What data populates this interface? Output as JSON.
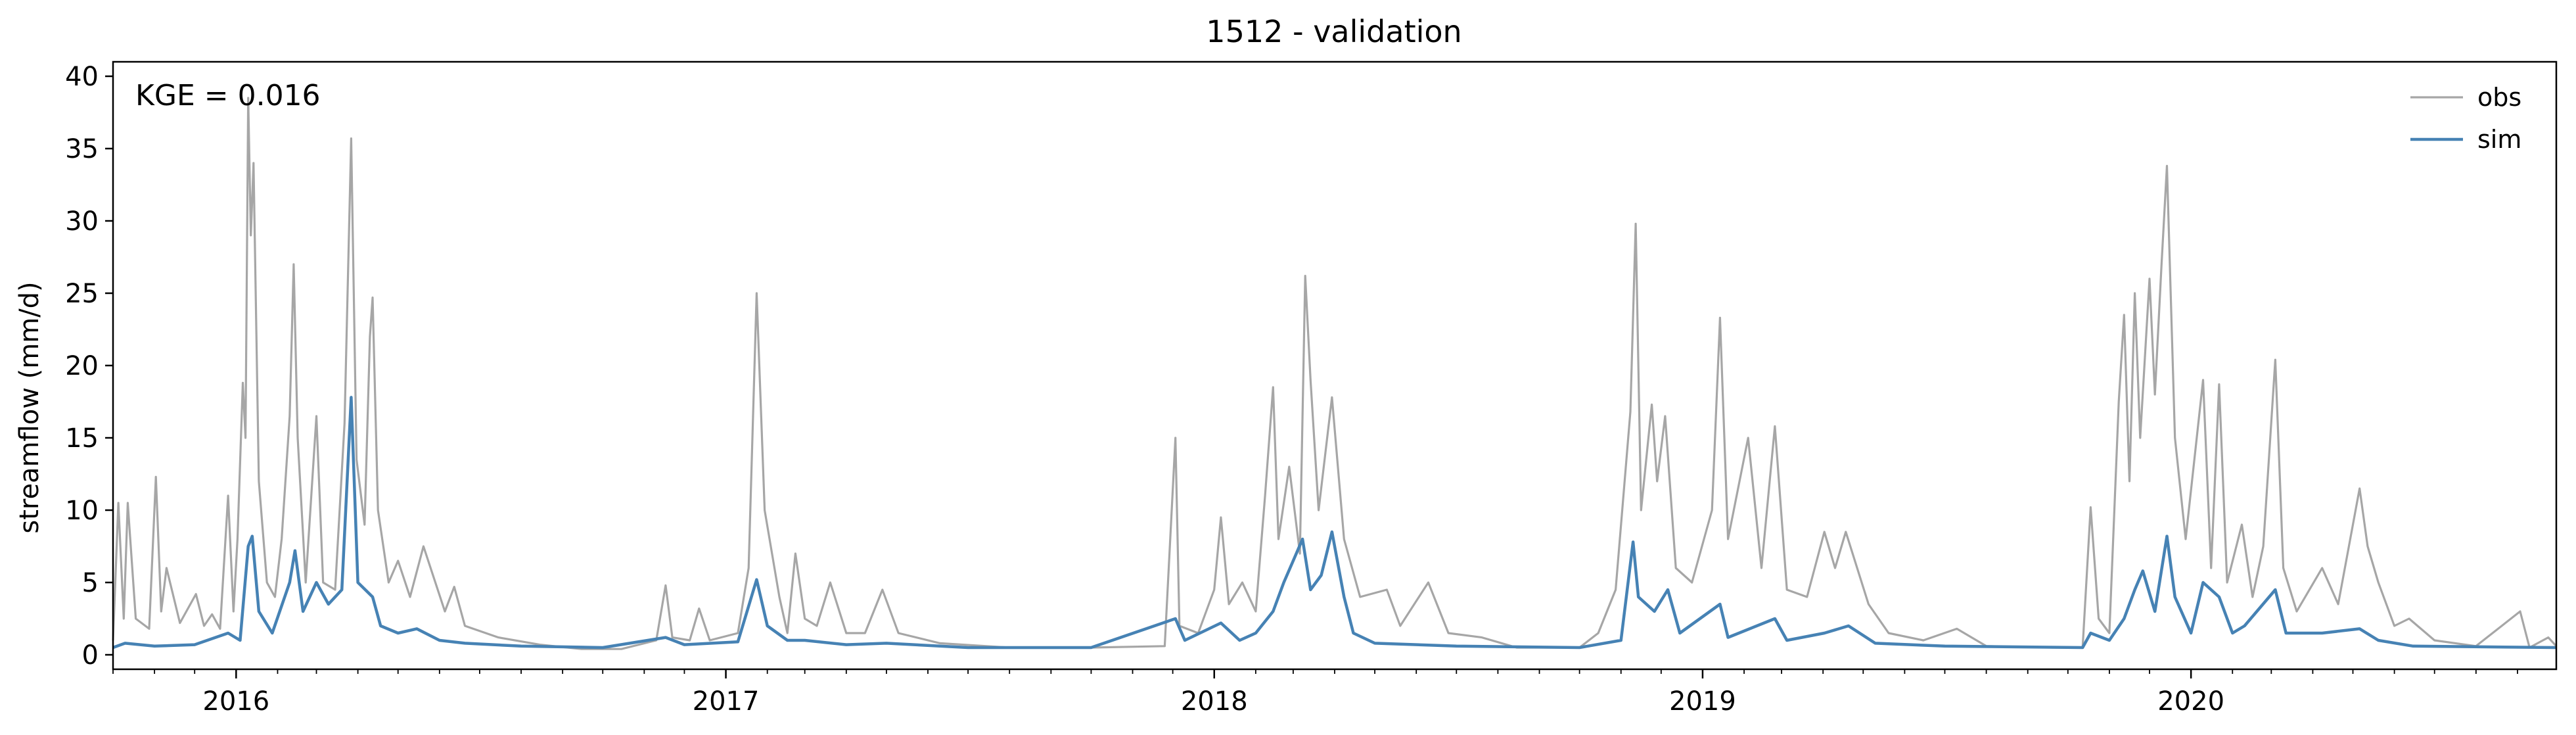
{
  "chart_data": {
    "type": "line",
    "title": "1512 - validation",
    "ylabel": "streamflow (mm/d)",
    "xlabel": "",
    "xlim": [
      "2015-10-01",
      "2020-09-30"
    ],
    "ylim": [
      -1,
      41
    ],
    "yticks": [
      0,
      5,
      10,
      15,
      20,
      25,
      30,
      35,
      40
    ],
    "xticks": [
      "2016",
      "2017",
      "2018",
      "2019",
      "2020"
    ],
    "grid": false,
    "legend": "top-right",
    "annotation": "KGE = 0.016",
    "series": [
      {
        "name": "obs",
        "color": "#a6a6a6",
        "points": [
          [
            "2015-10-01",
            1.0
          ],
          [
            "2015-10-05",
            10.5
          ],
          [
            "2015-10-09",
            2.5
          ],
          [
            "2015-10-12",
            10.5
          ],
          [
            "2015-10-18",
            2.5
          ],
          [
            "2015-10-28",
            1.8
          ],
          [
            "2015-11-02",
            12.3
          ],
          [
            "2015-11-06",
            3.0
          ],
          [
            "2015-11-10",
            6.0
          ],
          [
            "2015-11-20",
            2.2
          ],
          [
            "2015-12-02",
            4.2
          ],
          [
            "2015-12-08",
            2.0
          ],
          [
            "2015-12-14",
            2.8
          ],
          [
            "2015-12-20",
            1.8
          ],
          [
            "2015-12-26",
            11.0
          ],
          [
            "2015-12-30",
            3.0
          ],
          [
            "2016-01-02",
            8.0
          ],
          [
            "2016-01-06",
            18.8
          ],
          [
            "2016-01-08",
            15.0
          ],
          [
            "2016-01-10",
            38.5
          ],
          [
            "2016-01-12",
            29.0
          ],
          [
            "2016-01-14",
            34.0
          ],
          [
            "2016-01-18",
            12.0
          ],
          [
            "2016-01-24",
            5.0
          ],
          [
            "2016-01-30",
            4.0
          ],
          [
            "2016-02-04",
            8.0
          ],
          [
            "2016-02-10",
            16.5
          ],
          [
            "2016-02-13",
            27.0
          ],
          [
            "2016-02-16",
            15.0
          ],
          [
            "2016-02-22",
            5.0
          ],
          [
            "2016-03-01",
            16.5
          ],
          [
            "2016-03-06",
            5.0
          ],
          [
            "2016-03-15",
            4.5
          ],
          [
            "2016-03-22",
            16.0
          ],
          [
            "2016-03-27",
            35.7
          ],
          [
            "2016-03-31",
            13.5
          ],
          [
            "2016-04-06",
            9.0
          ],
          [
            "2016-04-10",
            22.0
          ],
          [
            "2016-04-12",
            24.7
          ],
          [
            "2016-04-16",
            10.0
          ],
          [
            "2016-04-24",
            5.0
          ],
          [
            "2016-05-01",
            6.5
          ],
          [
            "2016-05-10",
            4.0
          ],
          [
            "2016-05-20",
            7.5
          ],
          [
            "2016-06-05",
            3.0
          ],
          [
            "2016-06-12",
            4.7
          ],
          [
            "2016-06-20",
            2.0
          ],
          [
            "2016-07-15",
            1.2
          ],
          [
            "2016-08-15",
            0.7
          ],
          [
            "2016-09-15",
            0.4
          ],
          [
            "2016-10-15",
            0.4
          ],
          [
            "2016-11-10",
            1.0
          ],
          [
            "2016-11-17",
            4.8
          ],
          [
            "2016-11-22",
            1.2
          ],
          [
            "2016-12-05",
            1.0
          ],
          [
            "2016-12-12",
            3.2
          ],
          [
            "2016-12-20",
            1.0
          ],
          [
            "2017-01-10",
            1.5
          ],
          [
            "2017-01-18",
            6.0
          ],
          [
            "2017-01-24",
            25.0
          ],
          [
            "2017-01-30",
            10.0
          ],
          [
            "2017-02-10",
            4.0
          ],
          [
            "2017-02-16",
            1.5
          ],
          [
            "2017-02-22",
            7.0
          ],
          [
            "2017-03-01",
            2.5
          ],
          [
            "2017-03-10",
            2.0
          ],
          [
            "2017-03-20",
            5.0
          ],
          [
            "2017-04-01",
            1.5
          ],
          [
            "2017-04-15",
            1.5
          ],
          [
            "2017-04-28",
            4.5
          ],
          [
            "2017-05-10",
            1.5
          ],
          [
            "2017-06-10",
            0.8
          ],
          [
            "2017-08-01",
            0.5
          ],
          [
            "2017-10-01",
            0.5
          ],
          [
            "2017-11-25",
            0.6
          ],
          [
            "2017-12-03",
            15.0
          ],
          [
            "2017-12-06",
            2.0
          ],
          [
            "2017-12-20",
            1.5
          ],
          [
            "2018-01-01",
            4.5
          ],
          [
            "2018-01-06",
            9.5
          ],
          [
            "2018-01-12",
            3.5
          ],
          [
            "2018-01-22",
            5.0
          ],
          [
            "2018-02-01",
            3.0
          ],
          [
            "2018-02-08",
            11.0
          ],
          [
            "2018-02-14",
            18.5
          ],
          [
            "2018-02-18",
            8.0
          ],
          [
            "2018-02-26",
            13.0
          ],
          [
            "2018-03-06",
            7.0
          ],
          [
            "2018-03-10",
            26.2
          ],
          [
            "2018-03-14",
            19.0
          ],
          [
            "2018-03-20",
            10.0
          ],
          [
            "2018-03-30",
            17.8
          ],
          [
            "2018-04-08",
            8.0
          ],
          [
            "2018-04-20",
            4.0
          ],
          [
            "2018-05-10",
            4.5
          ],
          [
            "2018-05-20",
            2.0
          ],
          [
            "2018-06-10",
            5.0
          ],
          [
            "2018-06-25",
            1.5
          ],
          [
            "2018-07-20",
            1.2
          ],
          [
            "2018-08-15",
            0.5
          ],
          [
            "2018-10-01",
            0.5
          ],
          [
            "2018-10-15",
            1.5
          ],
          [
            "2018-10-28",
            4.5
          ],
          [
            "2018-11-08",
            16.8
          ],
          [
            "2018-11-12",
            29.8
          ],
          [
            "2018-11-16",
            10.0
          ],
          [
            "2018-11-24",
            17.3
          ],
          [
            "2018-11-28",
            12.0
          ],
          [
            "2018-12-04",
            16.5
          ],
          [
            "2018-12-12",
            6.0
          ],
          [
            "2018-12-24",
            5.0
          ],
          [
            "2019-01-08",
            10.0
          ],
          [
            "2019-01-14",
            23.3
          ],
          [
            "2019-01-20",
            8.0
          ],
          [
            "2019-02-04",
            15.0
          ],
          [
            "2019-02-14",
            6.0
          ],
          [
            "2019-02-24",
            15.8
          ],
          [
            "2019-03-05",
            4.5
          ],
          [
            "2019-03-20",
            4.0
          ],
          [
            "2019-04-02",
            8.5
          ],
          [
            "2019-04-10",
            6.0
          ],
          [
            "2019-04-18",
            8.5
          ],
          [
            "2019-05-05",
            3.5
          ],
          [
            "2019-05-20",
            1.5
          ],
          [
            "2019-06-15",
            1.0
          ],
          [
            "2019-07-10",
            1.8
          ],
          [
            "2019-08-01",
            0.6
          ],
          [
            "2019-09-20",
            0.5
          ],
          [
            "2019-10-12",
            0.5
          ],
          [
            "2019-10-18",
            10.2
          ],
          [
            "2019-10-24",
            2.5
          ],
          [
            "2019-11-01",
            1.5
          ],
          [
            "2019-11-08",
            17.5
          ],
          [
            "2019-11-12",
            23.5
          ],
          [
            "2019-11-16",
            12.0
          ],
          [
            "2019-11-20",
            25.0
          ],
          [
            "2019-11-24",
            15.0
          ],
          [
            "2019-12-01",
            26.0
          ],
          [
            "2019-12-05",
            18.0
          ],
          [
            "2019-12-10",
            27.0
          ],
          [
            "2019-12-14",
            33.8
          ],
          [
            "2019-12-20",
            15.0
          ],
          [
            "2019-12-28",
            8.0
          ],
          [
            "2020-01-10",
            19.0
          ],
          [
            "2020-01-16",
            6.0
          ],
          [
            "2020-01-22",
            18.7
          ],
          [
            "2020-01-28",
            5.0
          ],
          [
            "2020-02-08",
            9.0
          ],
          [
            "2020-02-16",
            4.0
          ],
          [
            "2020-02-24",
            7.5
          ],
          [
            "2020-03-04",
            20.4
          ],
          [
            "2020-03-10",
            6.0
          ],
          [
            "2020-03-20",
            3.0
          ],
          [
            "2020-04-08",
            6.0
          ],
          [
            "2020-04-20",
            3.5
          ],
          [
            "2020-05-06",
            11.5
          ],
          [
            "2020-05-12",
            7.5
          ],
          [
            "2020-05-20",
            5.0
          ],
          [
            "2020-06-01",
            2.0
          ],
          [
            "2020-06-12",
            2.5
          ],
          [
            "2020-07-01",
            1.0
          ],
          [
            "2020-08-01",
            0.6
          ],
          [
            "2020-09-03",
            3.0
          ],
          [
            "2020-09-10",
            0.5
          ],
          [
            "2020-09-24",
            1.2
          ],
          [
            "2020-09-30",
            0.6
          ]
        ]
      },
      {
        "name": "sim",
        "color": "#4682b4",
        "points": [
          [
            "2015-10-01",
            0.5
          ],
          [
            "2015-10-10",
            0.8
          ],
          [
            "2015-11-01",
            0.6
          ],
          [
            "2015-12-01",
            0.7
          ],
          [
            "2015-12-26",
            1.5
          ],
          [
            "2016-01-04",
            1.0
          ],
          [
            "2016-01-10",
            7.5
          ],
          [
            "2016-01-13",
            8.2
          ],
          [
            "2016-01-18",
            3.0
          ],
          [
            "2016-01-28",
            1.5
          ],
          [
            "2016-02-10",
            5.0
          ],
          [
            "2016-02-14",
            7.2
          ],
          [
            "2016-02-20",
            3.0
          ],
          [
            "2016-03-01",
            5.0
          ],
          [
            "2016-03-10",
            3.5
          ],
          [
            "2016-03-20",
            4.5
          ],
          [
            "2016-03-27",
            17.8
          ],
          [
            "2016-04-01",
            5.0
          ],
          [
            "2016-04-12",
            4.0
          ],
          [
            "2016-04-18",
            2.0
          ],
          [
            "2016-05-01",
            1.5
          ],
          [
            "2016-05-15",
            1.8
          ],
          [
            "2016-06-01",
            1.0
          ],
          [
            "2016-06-20",
            0.8
          ],
          [
            "2016-08-01",
            0.6
          ],
          [
            "2016-10-01",
            0.5
          ],
          [
            "2016-11-17",
            1.2
          ],
          [
            "2016-12-01",
            0.7
          ],
          [
            "2017-01-10",
            0.9
          ],
          [
            "2017-01-24",
            5.2
          ],
          [
            "2017-02-01",
            2.0
          ],
          [
            "2017-02-16",
            1.0
          ],
          [
            "2017-03-01",
            1.0
          ],
          [
            "2017-04-01",
            0.7
          ],
          [
            "2017-05-01",
            0.8
          ],
          [
            "2017-07-01",
            0.5
          ],
          [
            "2017-10-01",
            0.5
          ],
          [
            "2017-12-03",
            2.5
          ],
          [
            "2017-12-10",
            1.0
          ],
          [
            "2018-01-06",
            2.2
          ],
          [
            "2018-01-20",
            1.0
          ],
          [
            "2018-02-01",
            1.5
          ],
          [
            "2018-02-14",
            3.0
          ],
          [
            "2018-02-22",
            5.0
          ],
          [
            "2018-03-01",
            6.5
          ],
          [
            "2018-03-08",
            8.0
          ],
          [
            "2018-03-14",
            4.5
          ],
          [
            "2018-03-22",
            5.5
          ],
          [
            "2018-03-30",
            8.5
          ],
          [
            "2018-04-08",
            4.0
          ],
          [
            "2018-04-15",
            1.5
          ],
          [
            "2018-05-01",
            0.8
          ],
          [
            "2018-07-01",
            0.6
          ],
          [
            "2018-10-01",
            0.5
          ],
          [
            "2018-11-01",
            1.0
          ],
          [
            "2018-11-10",
            7.8
          ],
          [
            "2018-11-14",
            4.0
          ],
          [
            "2018-11-26",
            3.0
          ],
          [
            "2018-12-06",
            4.5
          ],
          [
            "2018-12-15",
            1.5
          ],
          [
            "2019-01-14",
            3.5
          ],
          [
            "2019-01-20",
            1.2
          ],
          [
            "2019-02-24",
            2.5
          ],
          [
            "2019-03-05",
            1.0
          ],
          [
            "2019-04-02",
            1.5
          ],
          [
            "2019-04-20",
            2.0
          ],
          [
            "2019-05-10",
            0.8
          ],
          [
            "2019-07-01",
            0.6
          ],
          [
            "2019-10-12",
            0.5
          ],
          [
            "2019-10-18",
            1.5
          ],
          [
            "2019-11-01",
            1.0
          ],
          [
            "2019-11-12",
            2.5
          ],
          [
            "2019-11-20",
            4.5
          ],
          [
            "2019-11-26",
            5.8
          ],
          [
            "2019-12-05",
            3.0
          ],
          [
            "2019-12-14",
            8.2
          ],
          [
            "2019-12-20",
            4.0
          ],
          [
            "2020-01-01",
            1.5
          ],
          [
            "2020-01-10",
            5.0
          ],
          [
            "2020-01-22",
            4.0
          ],
          [
            "2020-02-01",
            1.5
          ],
          [
            "2020-02-10",
            2.0
          ],
          [
            "2020-03-04",
            4.5
          ],
          [
            "2020-03-12",
            1.5
          ],
          [
            "2020-04-08",
            1.5
          ],
          [
            "2020-05-06",
            1.8
          ],
          [
            "2020-05-20",
            1.0
          ],
          [
            "2020-06-15",
            0.6
          ],
          [
            "2020-09-30",
            0.5
          ]
        ]
      }
    ]
  }
}
